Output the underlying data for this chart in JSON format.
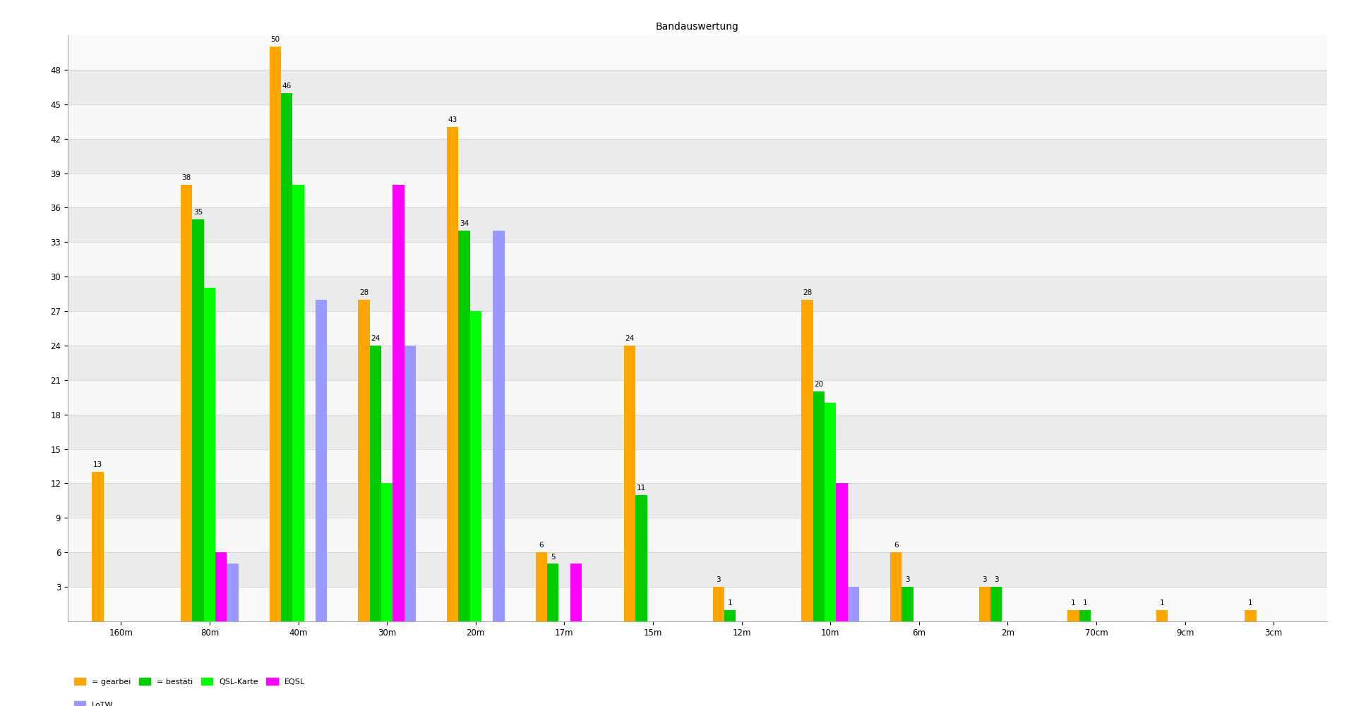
{
  "title": "Bandauswertung",
  "categories": [
    "160m",
    "80m",
    "40m",
    "30m",
    "20m",
    "17m",
    "15m",
    "12m",
    "10m",
    "6m",
    "2m",
    "70cm",
    "9cm",
    "3cm"
  ],
  "series": {
    "gearbeitet": [
      13,
      38,
      50,
      28,
      43,
      6,
      24,
      3,
      28,
      6,
      3,
      1,
      1,
      1
    ],
    "bestaetigt": [
      0,
      35,
      46,
      24,
      34,
      5,
      11,
      1,
      20,
      3,
      3,
      1,
      0,
      0
    ],
    "qsl_karte": [
      0,
      29,
      38,
      12,
      27,
      0,
      0,
      0,
      19,
      0,
      0,
      0,
      0,
      0
    ],
    "eqsl": [
      0,
      6,
      0,
      38,
      0,
      5,
      0,
      0,
      12,
      0,
      0,
      0,
      0,
      0
    ],
    "lotw": [
      0,
      5,
      28,
      24,
      34,
      0,
      0,
      0,
      3,
      0,
      0,
      0,
      0,
      0
    ]
  },
  "colors": {
    "gearbeitet": "#FFA500",
    "bestaetigt": "#00CC00",
    "qsl_karte": "#00FF00",
    "eqsl": "#FF00FF",
    "lotw": "#9999FF"
  },
  "legend_labels": {
    "gearbeitet": "= gearbei",
    "bestaetigt": "= bestäti",
    "qsl_karte": "QSL-Karte",
    "eqsl": "EQSL",
    "lotw": "LoTW"
  },
  "ylim": [
    0,
    51
  ],
  "yticks": [
    3,
    6,
    9,
    12,
    15,
    18,
    21,
    24,
    27,
    30,
    33,
    36,
    39,
    42,
    45,
    48
  ],
  "chart_bg": "#F5F5F5",
  "plot_bg": "#FFFFFF",
  "bar_width": 0.13,
  "title_fontsize": 10,
  "tick_fontsize": 8.5,
  "label_fontsize": 8.5
}
